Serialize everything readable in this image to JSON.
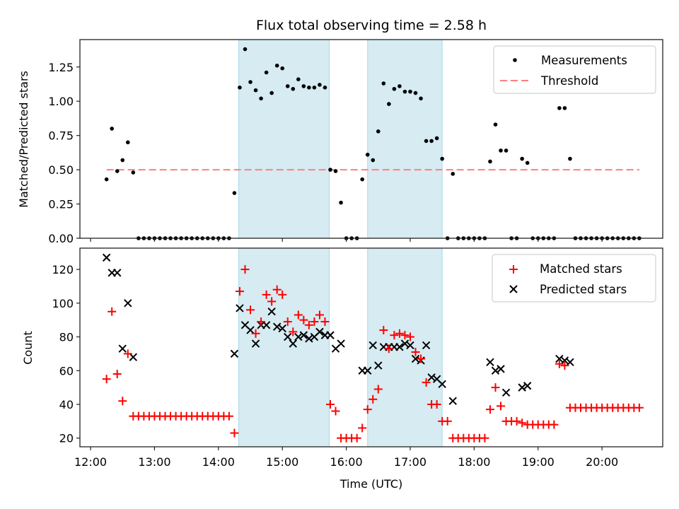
{
  "chart_data": [
    {
      "type": "scatter",
      "title": "Flux total observing time = 2.58 h",
      "xlabel": "",
      "ylabel": "Matched/Predicted stars",
      "ylim": [
        0,
        1.45
      ],
      "xlim": [
        "11:50",
        "20:57"
      ],
      "yticks": [
        "0.00",
        "0.25",
        "0.50",
        "0.75",
        "1.00",
        "1.25"
      ],
      "ytick_values": [
        0,
        0.25,
        0.5,
        0.75,
        1.0,
        1.25
      ],
      "xticks": [
        "12:00",
        "13:00",
        "14:00",
        "15:00",
        "16:00",
        "17:00",
        "18:00",
        "19:00",
        "20:00"
      ],
      "legend": {
        "placement": "top-right",
        "entries": [
          "Measurements",
          "Threshold"
        ]
      },
      "shaded_spans": [
        [
          "14:19",
          "15:44"
        ],
        [
          "16:20",
          "17:30"
        ]
      ],
      "threshold": {
        "name": "Threshold",
        "value": 0.5,
        "x_start": "12:15",
        "x_end": "20:35",
        "color": "#ff7f7f",
        "style": "dashed"
      },
      "series": [
        {
          "name": "Measurements",
          "color": "#000000",
          "x": [
            "12:15",
            "12:20",
            "12:25",
            "12:30",
            "12:35",
            "12:40",
            "12:45",
            "12:50",
            "12:55",
            "13:00",
            "13:05",
            "13:10",
            "13:15",
            "13:20",
            "13:25",
            "13:30",
            "13:35",
            "13:40",
            "13:45",
            "13:50",
            "13:55",
            "14:00",
            "14:05",
            "14:10",
            "14:15",
            "14:20",
            "14:25",
            "14:30",
            "14:35",
            "14:40",
            "14:45",
            "14:50",
            "14:55",
            "15:00",
            "15:05",
            "15:10",
            "15:15",
            "15:20",
            "15:25",
            "15:30",
            "15:35",
            "15:40",
            "15:45",
            "15:50",
            "15:55",
            "16:00",
            "16:05",
            "16:10",
            "16:15",
            "16:20",
            "16:25",
            "16:30",
            "16:35",
            "16:40",
            "16:45",
            "16:50",
            "16:55",
            "17:00",
            "17:05",
            "17:10",
            "17:15",
            "17:20",
            "17:25",
            "17:30",
            "17:35",
            "17:40",
            "17:45",
            "17:50",
            "17:55",
            "18:00",
            "18:05",
            "18:10",
            "18:15",
            "18:20",
            "18:25",
            "18:30",
            "18:35",
            "18:40",
            "18:45",
            "18:50",
            "18:55",
            "19:00",
            "19:05",
            "19:10",
            "19:15",
            "19:20",
            "19:25",
            "19:30",
            "19:35",
            "19:40",
            "19:45",
            "19:50",
            "19:55",
            "20:00",
            "20:05",
            "20:10",
            "20:15",
            "20:20",
            "20:25",
            "20:30",
            "20:35"
          ],
          "y": [
            0.43,
            0.8,
            0.49,
            0.57,
            0.7,
            0.48,
            0,
            0,
            0,
            0,
            0,
            0,
            0,
            0,
            0,
            0,
            0,
            0,
            0,
            0,
            0,
            0,
            0,
            0,
            0.33,
            1.1,
            1.38,
            1.14,
            1.08,
            1.02,
            1.21,
            1.06,
            1.26,
            1.24,
            1.11,
            1.09,
            1.16,
            1.11,
            1.1,
            1.1,
            1.12,
            1.1,
            0.5,
            0.49,
            0.26,
            0,
            0,
            0,
            0.43,
            0.61,
            0.57,
            0.78,
            1.13,
            0.98,
            1.09,
            1.11,
            1.07,
            1.07,
            1.06,
            1.02,
            0.71,
            0.71,
            0.73,
            0.58,
            0,
            0.47,
            0,
            0,
            0,
            0,
            0,
            0,
            0.56,
            0.83,
            0.64,
            0.64,
            0,
            0,
            0.58,
            0.55,
            0,
            0,
            0,
            0,
            0,
            0.95,
            0.95,
            0.58,
            0,
            0,
            0,
            0,
            0,
            0,
            0,
            0,
            0,
            0,
            0,
            0,
            0
          ]
        }
      ]
    },
    {
      "type": "scatter",
      "title": "",
      "xlabel": "Time (UTC)",
      "ylabel": "Count",
      "ylim": [
        14.85,
        132.6
      ],
      "xlim": [
        "11:50",
        "20:57"
      ],
      "yticks": [
        "20",
        "40",
        "60",
        "80",
        "100",
        "120"
      ],
      "ytick_values": [
        20,
        40,
        60,
        80,
        100,
        120
      ],
      "xticks": [
        "12:00",
        "13:00",
        "14:00",
        "15:00",
        "16:00",
        "17:00",
        "18:00",
        "19:00",
        "20:00"
      ],
      "legend": {
        "placement": "top-right",
        "entries": [
          "Matched stars",
          "Predicted stars"
        ]
      },
      "shaded_spans": [
        [
          "14:19",
          "15:44"
        ],
        [
          "16:20",
          "17:30"
        ]
      ],
      "series": [
        {
          "name": "Matched stars",
          "marker": "+",
          "color": "#ff0000",
          "x": [
            "12:15",
            "12:20",
            "12:25",
            "12:30",
            "12:35",
            "12:40",
            "12:45",
            "12:50",
            "12:55",
            "13:00",
            "13:05",
            "13:10",
            "13:15",
            "13:20",
            "13:25",
            "13:30",
            "13:35",
            "13:40",
            "13:45",
            "13:50",
            "13:55",
            "14:00",
            "14:05",
            "14:10",
            "14:15",
            "14:20",
            "14:25",
            "14:30",
            "14:35",
            "14:40",
            "14:45",
            "14:50",
            "14:55",
            "15:00",
            "15:05",
            "15:10",
            "15:15",
            "15:20",
            "15:25",
            "15:30",
            "15:35",
            "15:40",
            "15:45",
            "15:50",
            "15:55",
            "16:00",
            "16:05",
            "16:10",
            "16:15",
            "16:20",
            "16:25",
            "16:30",
            "16:35",
            "16:40",
            "16:45",
            "16:50",
            "16:55",
            "17:00",
            "17:05",
            "17:10",
            "17:15",
            "17:20",
            "17:25",
            "17:30",
            "17:35",
            "17:40",
            "17:45",
            "17:50",
            "17:55",
            "18:00",
            "18:05",
            "18:10",
            "18:15",
            "18:20",
            "18:25",
            "18:30",
            "18:35",
            "18:40",
            "18:45",
            "18:50",
            "18:55",
            "19:00",
            "19:05",
            "19:10",
            "19:15",
            "19:20",
            "19:25",
            "19:30",
            "19:35",
            "19:40",
            "19:45",
            "19:50",
            "19:55",
            "20:00",
            "20:05",
            "20:10",
            "20:15",
            "20:20",
            "20:25",
            "20:30",
            "20:35"
          ],
          "y": [
            55,
            95,
            58,
            42,
            70,
            33,
            33,
            33,
            33,
            33,
            33,
            33,
            33,
            33,
            33,
            33,
            33,
            33,
            33,
            33,
            33,
            33,
            33,
            33,
            23,
            107,
            120,
            96,
            82,
            89,
            105,
            101,
            108,
            105,
            89,
            83,
            93,
            90,
            87,
            89,
            93,
            89,
            40,
            36,
            20,
            20,
            20,
            20,
            26,
            37,
            43,
            49,
            84,
            73,
            81,
            82,
            81,
            80,
            71,
            67,
            53,
            40,
            40,
            30,
            30,
            20,
            20,
            20,
            20,
            20,
            20,
            20,
            37,
            50,
            39,
            30,
            30,
            30,
            29,
            28,
            28,
            28,
            28,
            28,
            28,
            64,
            63,
            38,
            38,
            38,
            38,
            38,
            38,
            38,
            38,
            38,
            38,
            38,
            38,
            38,
            38
          ]
        },
        {
          "name": "Predicted stars",
          "marker": "x",
          "color": "#000000",
          "x": [
            "12:15",
            "12:20",
            "12:25",
            "12:30",
            "12:35",
            "12:40",
            "14:15",
            "14:20",
            "14:25",
            "14:30",
            "14:35",
            "14:40",
            "14:45",
            "14:50",
            "14:55",
            "15:00",
            "15:05",
            "15:10",
            "15:15",
            "15:20",
            "15:25",
            "15:30",
            "15:35",
            "15:40",
            "15:45",
            "15:50",
            "15:55",
            "16:15",
            "16:20",
            "16:25",
            "16:30",
            "16:35",
            "16:40",
            "16:45",
            "16:50",
            "16:55",
            "17:00",
            "17:05",
            "17:10",
            "17:15",
            "17:20",
            "17:25",
            "17:30",
            "17:40",
            "18:15",
            "18:20",
            "18:25",
            "18:30",
            "18:45",
            "18:50",
            "19:20",
            "19:25",
            "19:30"
          ],
          "y": [
            127,
            118,
            118,
            73,
            100,
            68,
            70,
            97,
            87,
            84,
            76,
            87,
            87,
            95,
            86,
            85,
            80,
            76,
            80,
            81,
            79,
            80,
            83,
            81,
            81,
            73,
            76,
            60,
            60,
            75,
            63,
            74,
            74,
            74,
            74,
            76,
            75,
            67,
            66,
            75,
            56,
            55,
            52,
            42,
            65,
            60,
            61,
            47,
            50,
            51,
            67,
            66,
            65
          ]
        }
      ]
    }
  ]
}
